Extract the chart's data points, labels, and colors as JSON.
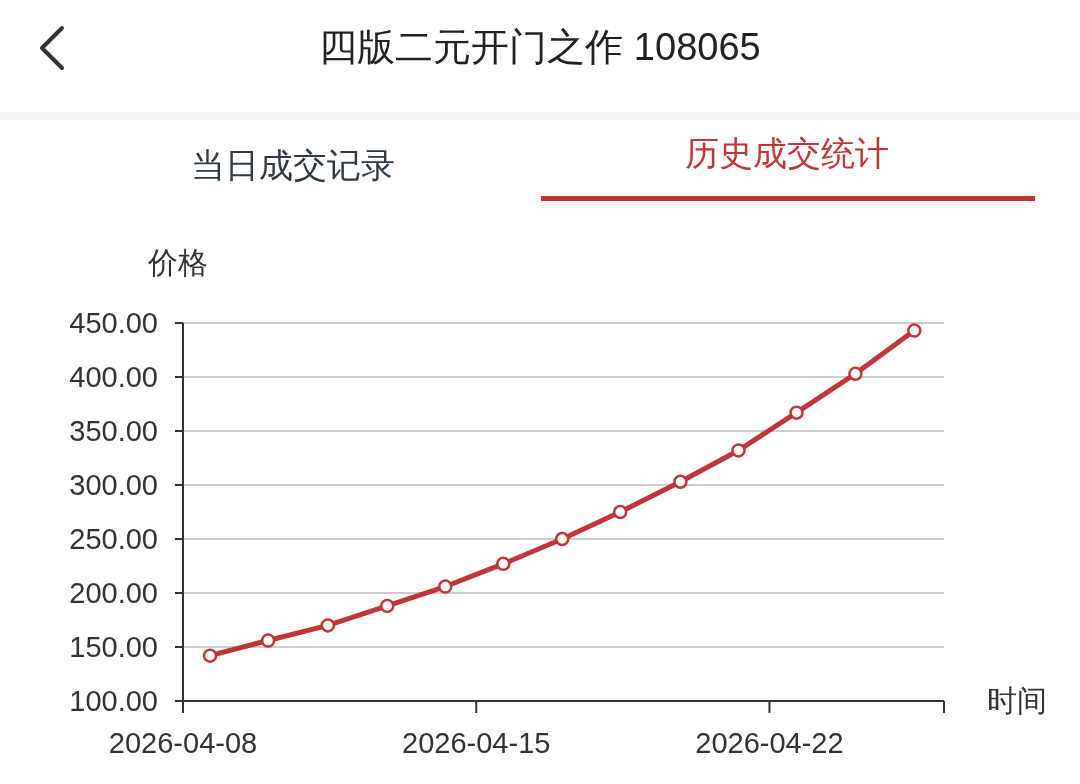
{
  "chart_data": {
    "type": "line",
    "title": "四版二元开门之作 108065",
    "annotations": [
      "当日成交记录",
      "历史成交统计"
    ],
    "xlabel": "时间",
    "ylabel": "价格",
    "x": [
      "2026-04-08T15:30",
      "2026-04-10T00:45",
      "2026-04-11T11:00",
      "2026-04-12T21:00",
      "2026-04-14T06:15",
      "2026-04-15T15:30",
      "2026-04-17T01:15",
      "2026-04-18T10:30",
      "2026-04-19T21:00",
      "2026-04-21T06:15",
      "2026-04-22T15:30",
      "2026-04-24T01:15",
      "2026-04-25T11:00"
    ],
    "series": [
      {
        "color": "#c0353a",
        "values": [
          142,
          156,
          170,
          188,
          206,
          227,
          250,
          275,
          303,
          332,
          367,
          403,
          443
        ]
      }
    ],
    "xlim": [
      "2026-04-08",
      "2026-04-26T04:00"
    ],
    "xticks": [
      "2026-04-08",
      "2026-04-15",
      "2026-04-22"
    ],
    "ylim": [
      100,
      450
    ],
    "yticks": [
      {
        "value": 100,
        "label": "100.00"
      },
      {
        "value": 150,
        "label": "150.00"
      },
      {
        "value": 200,
        "label": "200.00"
      },
      {
        "value": 250,
        "label": "250.00"
      },
      {
        "value": 300,
        "label": "300.00"
      },
      {
        "value": 350,
        "label": "350.00"
      },
      {
        "value": 400,
        "label": "400.00"
      },
      {
        "value": 450,
        "label": "450.00"
      }
    ],
    "grid": "y",
    "marker": "circle",
    "line_style": "solid"
  }
}
